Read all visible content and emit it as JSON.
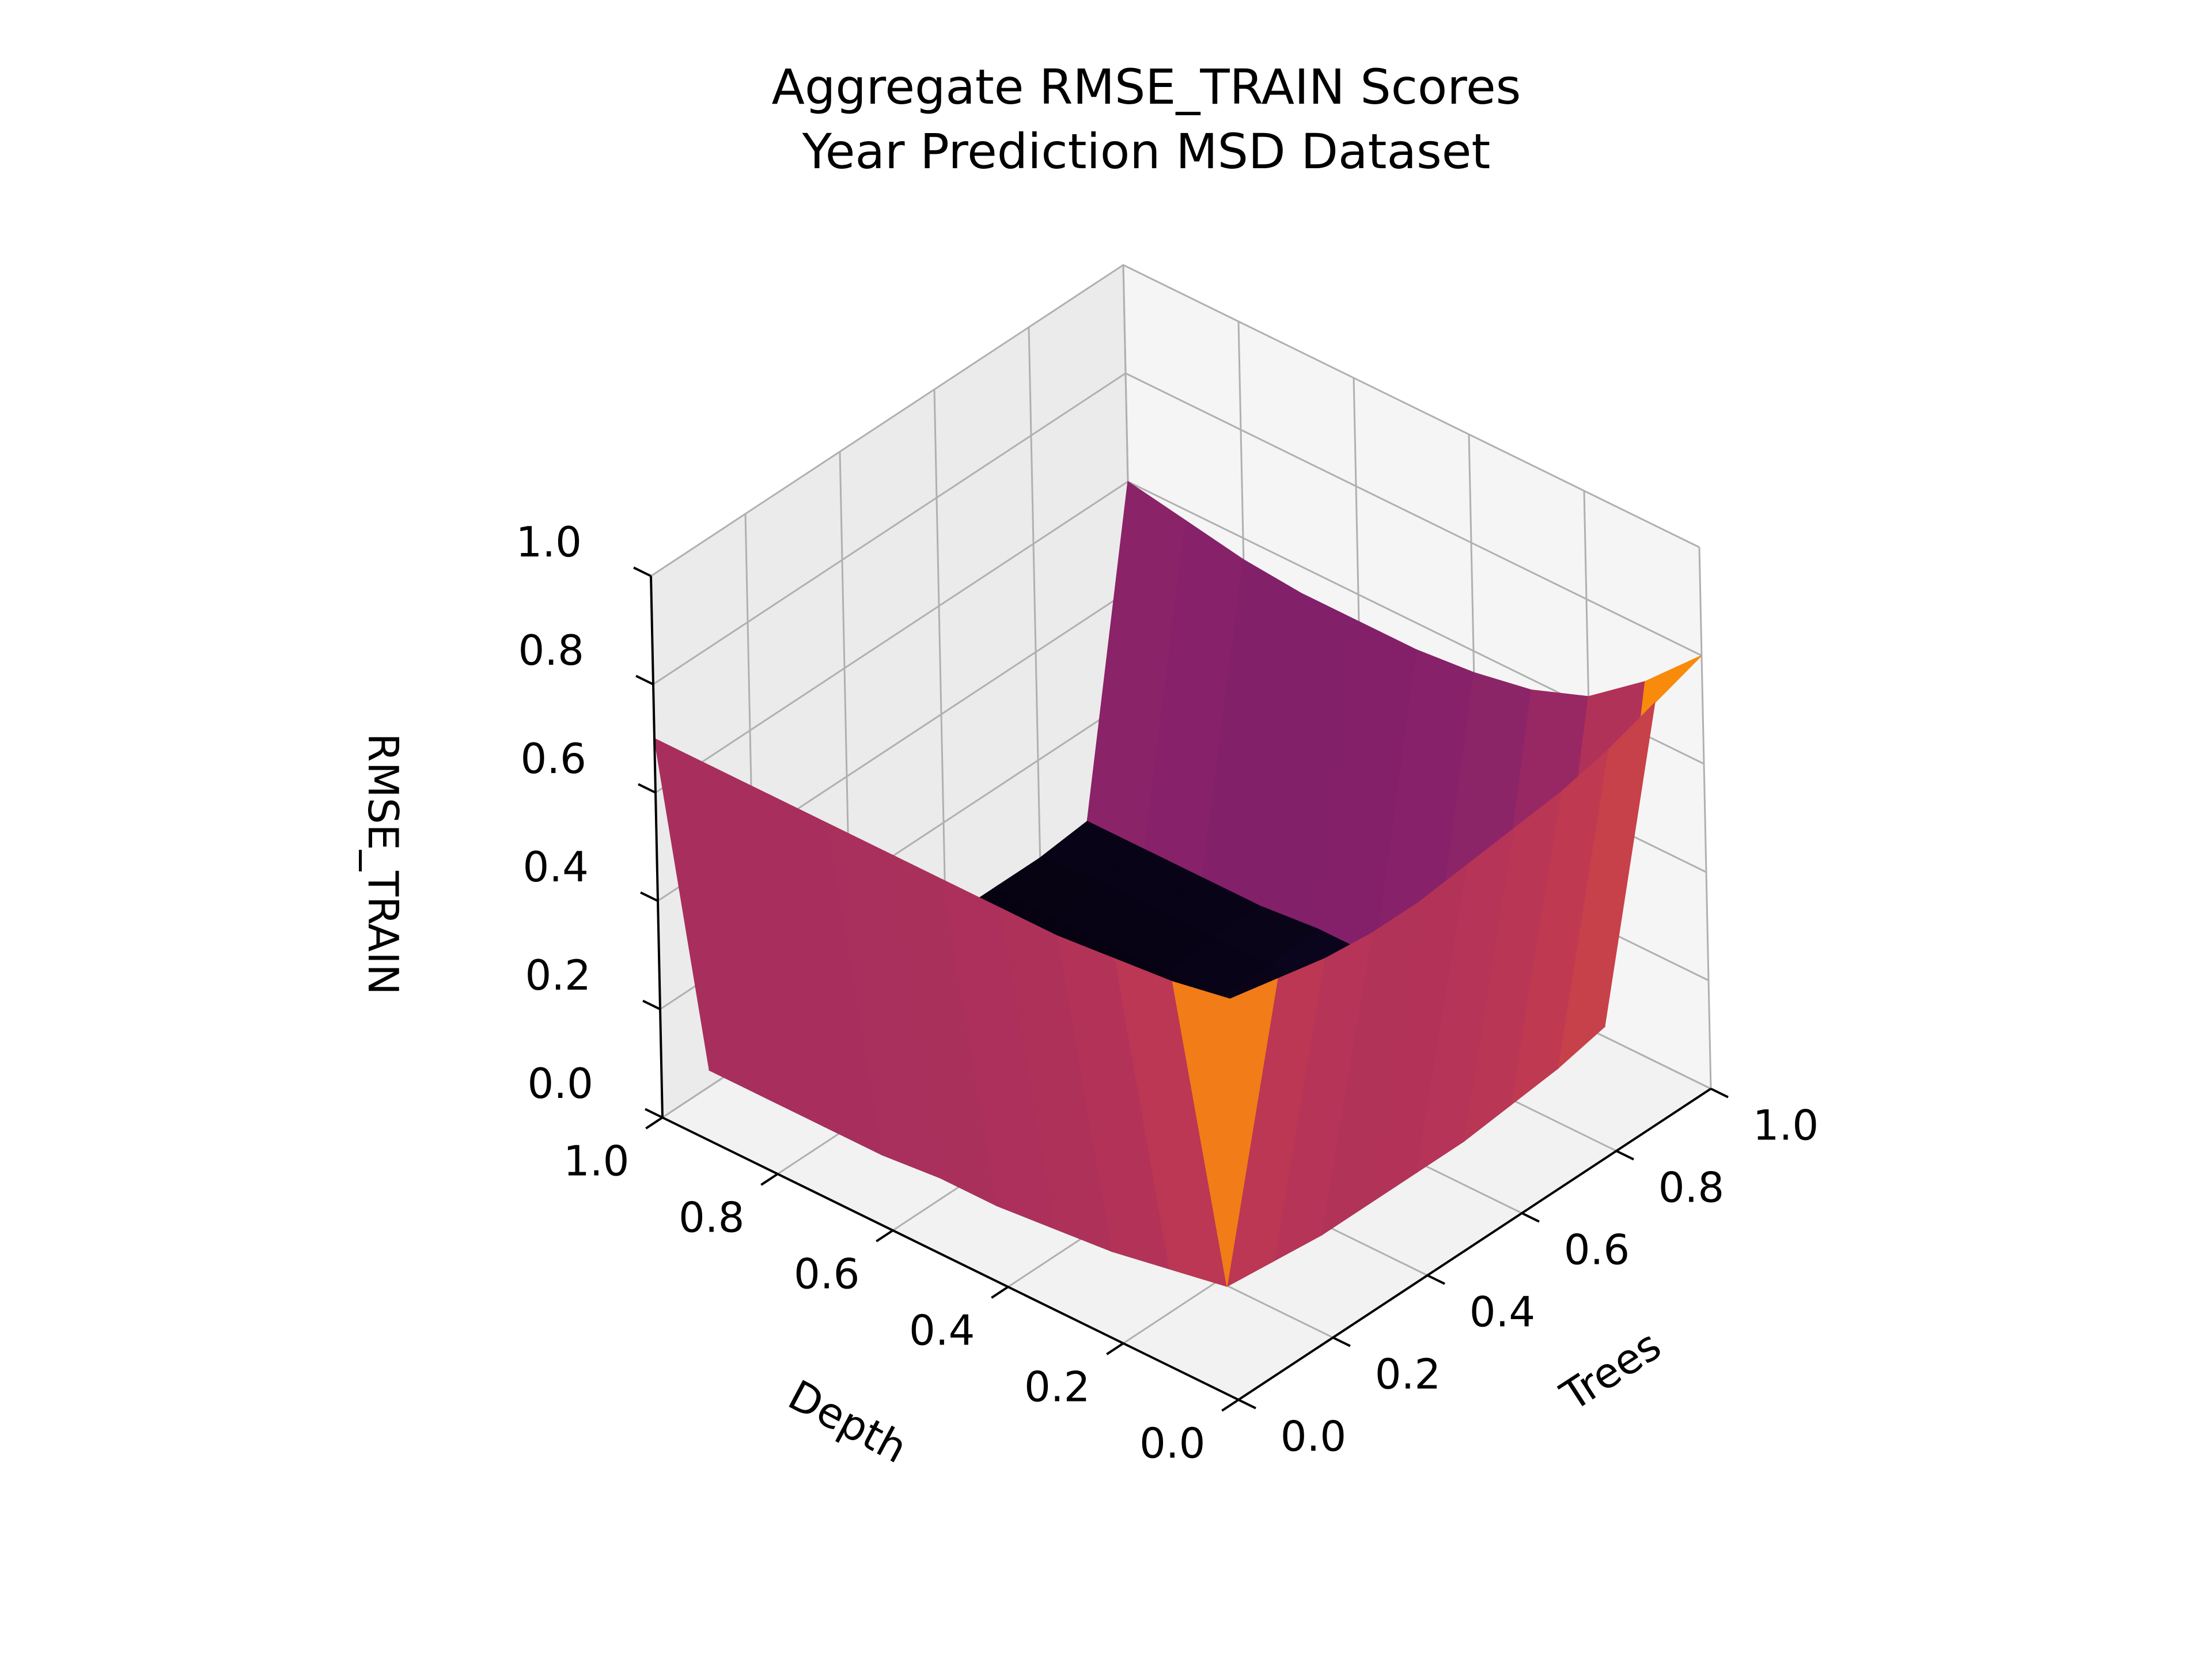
{
  "chart_data": {
    "type": "surface3d",
    "title": "Aggregate RMSE_TRAIN Scores",
    "subtitle": "Year Prediction MSD Dataset",
    "xlabel": "Trees",
    "ylabel": "Depth",
    "zlabel": "RMSE_TRAIN",
    "xlim": [
      0,
      1
    ],
    "ylim": [
      0,
      1
    ],
    "zlim": [
      0,
      1
    ],
    "xticks": [
      "0.0",
      "0.2",
      "0.4",
      "0.6",
      "0.8",
      "1.0"
    ],
    "yticks": [
      "0.0",
      "0.2",
      "0.4",
      "0.6",
      "0.8",
      "1.0"
    ],
    "zticks": [
      "0.0",
      "0.2",
      "0.4",
      "0.6",
      "0.8",
      "1.0"
    ],
    "colormap": "inferno",
    "grid": true,
    "surface": {
      "x": [
        0.0,
        0.1,
        0.2,
        0.3,
        0.4,
        0.5,
        0.6,
        0.7,
        0.8,
        0.9,
        1.0
      ],
      "y": [
        0.0,
        0.1,
        0.2,
        0.3,
        0.4,
        0.5,
        0.6,
        0.7,
        0.8,
        0.9,
        1.0
      ],
      "z": [
        [
          0.74,
          0.72,
          0.7,
          0.69,
          0.69,
          0.7,
          0.71,
          0.72,
          0.74,
          0.77,
          0.8
        ],
        [
          0.72,
          0.1,
          0.09,
          0.08,
          0.08,
          0.08,
          0.08,
          0.09,
          0.1,
          0.12,
          0.7
        ],
        [
          0.71,
          0.08,
          0.06,
          0.05,
          0.05,
          0.05,
          0.05,
          0.06,
          0.07,
          0.08,
          0.62
        ],
        [
          0.7,
          0.06,
          0.05,
          0.04,
          0.04,
          0.04,
          0.04,
          0.05,
          0.05,
          0.06,
          0.58
        ],
        [
          0.7,
          0.05,
          0.04,
          0.03,
          0.03,
          0.03,
          0.03,
          0.04,
          0.04,
          0.05,
          0.56
        ],
        [
          0.7,
          0.04,
          0.03,
          0.03,
          0.02,
          0.02,
          0.03,
          0.03,
          0.04,
          0.04,
          0.55
        ],
        [
          0.7,
          0.04,
          0.03,
          0.02,
          0.02,
          0.02,
          0.02,
          0.03,
          0.03,
          0.04,
          0.55
        ],
        [
          0.7,
          0.03,
          0.03,
          0.02,
          0.02,
          0.02,
          0.02,
          0.02,
          0.03,
          0.03,
          0.55
        ],
        [
          0.7,
          0.03,
          0.02,
          0.02,
          0.02,
          0.02,
          0.02,
          0.02,
          0.03,
          0.03,
          0.56
        ],
        [
          0.7,
          0.03,
          0.02,
          0.02,
          0.02,
          0.02,
          0.02,
          0.02,
          0.03,
          0.03,
          0.58
        ],
        [
          0.7,
          0.03,
          0.02,
          0.02,
          0.02,
          0.02,
          0.02,
          0.02,
          0.02,
          0.03,
          0.6
        ]
      ]
    }
  }
}
